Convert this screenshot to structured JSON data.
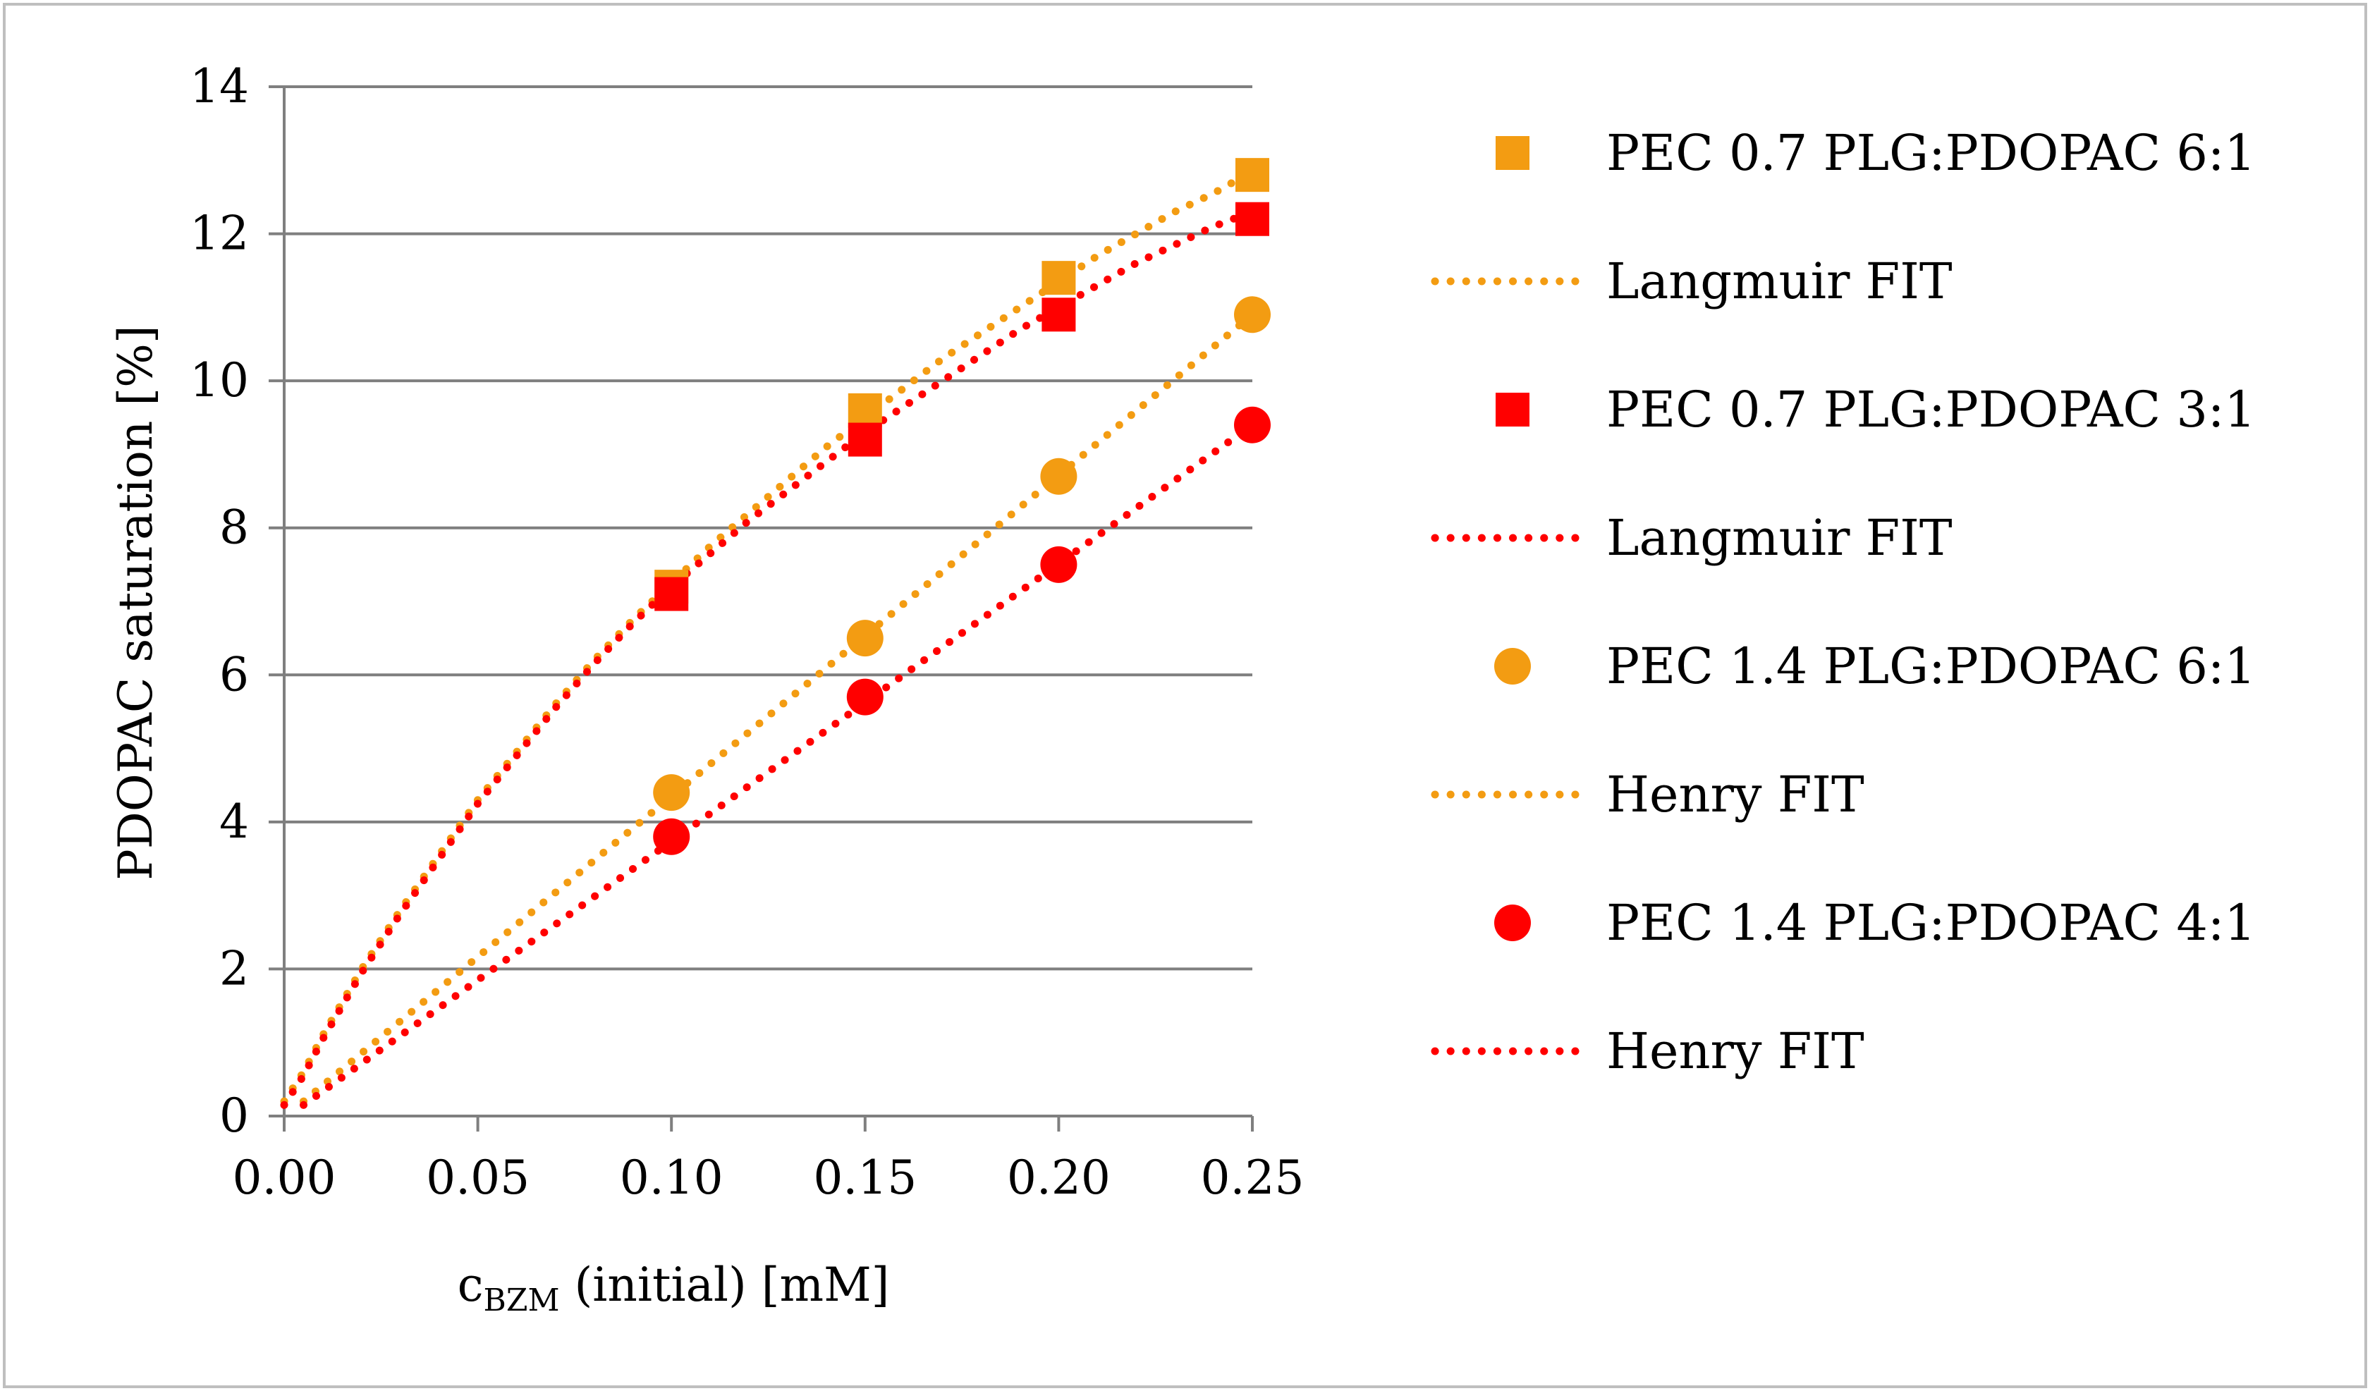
{
  "chart_data": {
    "type": "scatter",
    "xlabel_main": "c",
    "xlabel_sub": "BZM",
    "xlabel_rest": " (initial) [mM]",
    "ylabel": "PDOPAC saturation [%]",
    "xlim": [
      0,
      0.25
    ],
    "ylim": [
      0,
      14
    ],
    "xticks": [
      0,
      0.05,
      0.1,
      0.15,
      0.2,
      0.25
    ],
    "xtick_labels": [
      "0.00",
      "0.05",
      "0.10",
      "0.15",
      "0.20",
      "0.25"
    ],
    "yticks": [
      0,
      2,
      4,
      6,
      8,
      10,
      12,
      14
    ],
    "ytick_labels": [
      "0",
      "2",
      "4",
      "6",
      "8",
      "10",
      "12",
      "14"
    ],
    "grid": "horizontal",
    "legend_position": "right",
    "series": [
      {
        "name": "PEC 0.7 PLG:PDOPAC 6:1",
        "marker": "square",
        "color": "#f39c12",
        "x": [
          0.1,
          0.15,
          0.2,
          0.25
        ],
        "y": [
          7.2,
          9.6,
          11.4,
          12.8
        ],
        "fit": {
          "name": "Langmuir FIT",
          "model": "langmuir",
          "x": [
            0,
            0.005,
            0.01,
            0.02,
            0.03,
            0.04,
            0.05,
            0.06,
            0.07,
            0.08,
            0.09,
            0.1,
            0.11,
            0.12,
            0.13,
            0.14,
            0.15,
            0.16,
            0.17,
            0.18,
            0.19,
            0.2,
            0.21,
            0.22,
            0.23,
            0.24,
            0.25
          ],
          "y": [
            0.2,
            0.6,
            1.1,
            2.0,
            2.8,
            3.55,
            4.3,
            4.95,
            5.6,
            6.2,
            6.75,
            7.25,
            7.75,
            8.2,
            8.65,
            9.1,
            9.5,
            9.9,
            10.3,
            10.65,
            11.0,
            11.35,
            11.7,
            12.0,
            12.3,
            12.55,
            12.85
          ]
        }
      },
      {
        "name": "PEC 0.7 PLG:PDOPAC 3:1",
        "marker": "square",
        "color": "#ff0000",
        "x": [
          0.1,
          0.15,
          0.2,
          0.25
        ],
        "y": [
          7.1,
          9.2,
          10.9,
          12.2
        ],
        "fit": {
          "name": "Langmuir FIT",
          "model": "langmuir",
          "x": [
            0,
            0.005,
            0.01,
            0.02,
            0.03,
            0.04,
            0.05,
            0.06,
            0.07,
            0.08,
            0.09,
            0.1,
            0.11,
            0.12,
            0.13,
            0.14,
            0.15,
            0.16,
            0.17,
            0.18,
            0.19,
            0.2,
            0.21,
            0.22,
            0.23,
            0.24,
            0.25
          ],
          "y": [
            0.15,
            0.55,
            1.05,
            1.95,
            2.75,
            3.5,
            4.25,
            4.9,
            5.55,
            6.15,
            6.7,
            7.2,
            7.65,
            8.1,
            8.5,
            8.9,
            9.3,
            9.65,
            10.0,
            10.35,
            10.7,
            11.0,
            11.3,
            11.6,
            11.85,
            12.1,
            12.3
          ]
        }
      },
      {
        "name": "PEC 1.4 PLG:PDOPAC 6:1",
        "marker": "circle",
        "color": "#f39c12",
        "x": [
          0.1,
          0.15,
          0.2,
          0.25
        ],
        "y": [
          4.4,
          6.5,
          8.7,
          10.9
        ],
        "fit": {
          "name": "Henry FIT",
          "model": "henry",
          "x": [
            0.005,
            0.25
          ],
          "y": [
            0.2,
            10.9
          ]
        }
      },
      {
        "name": "PEC 1.4 PLG:PDOPAC 4:1",
        "marker": "circle",
        "color": "#ff0000",
        "x": [
          0.1,
          0.15,
          0.2,
          0.25
        ],
        "y": [
          3.8,
          5.7,
          7.5,
          9.4
        ],
        "fit": {
          "name": "Henry FIT",
          "model": "henry",
          "x": [
            0.005,
            0.25
          ],
          "y": [
            0.15,
            9.4
          ]
        }
      }
    ]
  }
}
